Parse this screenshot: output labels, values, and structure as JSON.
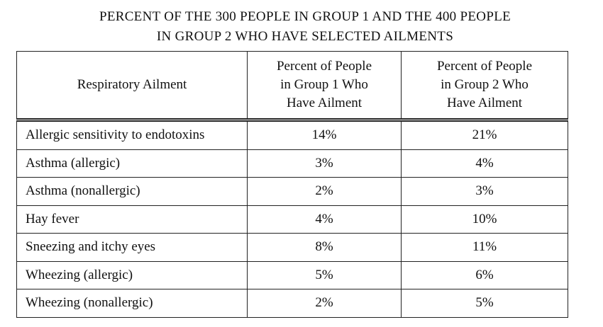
{
  "title": [
    "PERCENT OF THE 300 PEOPLE IN GROUP 1 AND THE 400 PEOPLE",
    "IN GROUP 2 WHO HAVE SELECTED AILMENTS"
  ],
  "table": {
    "header": [
      [
        "Respiratory Ailment"
      ],
      [
        "Percent of People",
        "in Group 1 Who",
        "Have Ailment"
      ],
      [
        "Percent of People",
        "in Group 2 Who",
        "Have Ailment"
      ]
    ],
    "rows": [
      [
        "Allergic sensitivity to endotoxins",
        "14%",
        "21%"
      ],
      [
        "Asthma (allergic)",
        "3%",
        "4%"
      ],
      [
        "Asthma (nonallergic)",
        "2%",
        "3%"
      ],
      [
        "Hay fever",
        "4%",
        "10%"
      ],
      [
        "Sneezing and itchy eyes",
        "8%",
        "11%"
      ],
      [
        "Wheezing (allergic)",
        "5%",
        "6%"
      ],
      [
        "Wheezing (nonallergic)",
        "2%",
        "5%"
      ]
    ]
  }
}
